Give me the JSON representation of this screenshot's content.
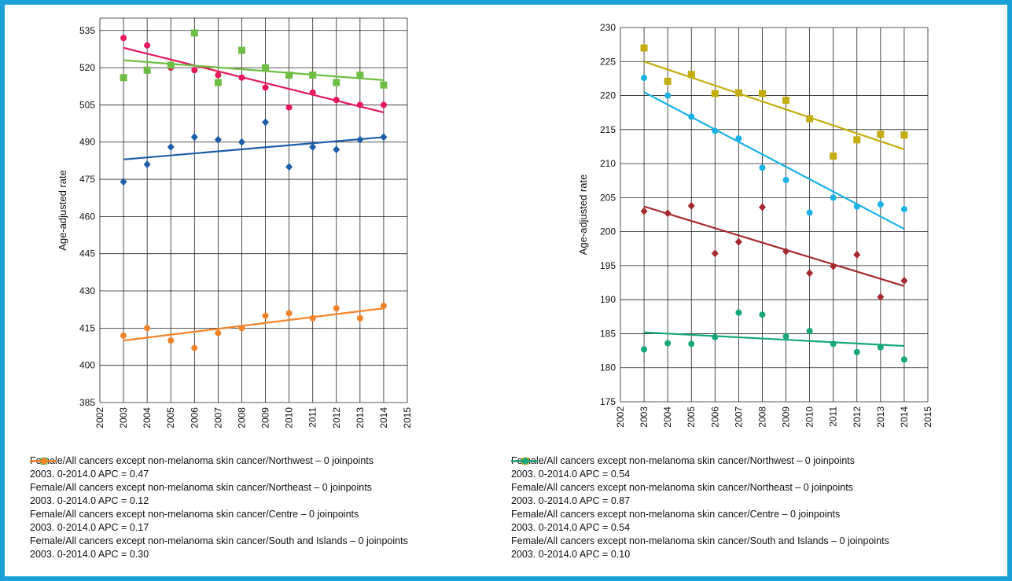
{
  "frame_color": "#1ba1d8",
  "chart_data": [
    {
      "type": "scatter",
      "ylabel": "Age-adjusted rate",
      "xlabel": "",
      "xlim": [
        2002,
        2015
      ],
      "ylim": [
        385,
        540
      ],
      "xticks": [
        "2002",
        "2003",
        "2004",
        "2005",
        "2006",
        "2007",
        "2008",
        "2009",
        "2010",
        "2011",
        "2012",
        "2013",
        "2014",
        "2015"
      ],
      "yticks": [
        "385",
        "400",
        "415",
        "430",
        "445",
        "460",
        "475",
        "490",
        "505",
        "520",
        "535"
      ],
      "grid": true,
      "legend_position": "bottom",
      "series": [
        {
          "name": "Female/All cancers except non-melanoma skin cancer/Northwest – 0 joinpoints",
          "trend_label": "2003. 0-2014.0 APC = 0.47",
          "color": "#e5195a",
          "marker": "circle",
          "x": [
            2003,
            2004,
            2005,
            2006,
            2007,
            2008,
            2009,
            2010,
            2011,
            2012,
            2013,
            2014
          ],
          "values": [
            532,
            529,
            520,
            519,
            517,
            516,
            512,
            504,
            510,
            507,
            505,
            505
          ],
          "trend": [
            [
              2003,
              528
            ],
            [
              2014,
              502
            ]
          ]
        },
        {
          "name": "Female/All cancers except non-melanoma skin cancer/Northeast – 0 joinpoints",
          "trend_label": "2003. 0-2014.0 APC = 0.12",
          "color": "#6fbe44",
          "marker": "square",
          "x": [
            2003,
            2004,
            2005,
            2006,
            2007,
            2008,
            2009,
            2010,
            2011,
            2012,
            2013,
            2014
          ],
          "values": [
            516,
            519,
            521,
            534,
            514,
            527,
            520,
            517,
            517,
            514,
            517,
            513
          ],
          "trend": [
            [
              2003,
              523
            ],
            [
              2014,
              515
            ]
          ]
        },
        {
          "name": "Female/All cancers except non-melanoma skin cancer/Centre – 0 joinpoints",
          "trend_label": "2003. 0-2014.0 APC = 0.17",
          "color": "#1e5ea8",
          "marker": "diamond",
          "x": [
            2003,
            2004,
            2005,
            2006,
            2007,
            2008,
            2009,
            2010,
            2011,
            2012,
            2013,
            2014
          ],
          "values": [
            474,
            481,
            488,
            492,
            491,
            490,
            498,
            480,
            488,
            487,
            491,
            492
          ],
          "trend": [
            [
              2003,
              483
            ],
            [
              2014,
              492
            ]
          ]
        },
        {
          "name": "Female/All cancers except non-melanoma skin cancer/South and Islands – 0 joinpoints",
          "trend_label": "2003. 0-2014.0 APC = 0.30",
          "color": "#f5832a",
          "marker": "circle",
          "x": [
            2003,
            2004,
            2005,
            2006,
            2007,
            2008,
            2009,
            2010,
            2011,
            2012,
            2013,
            2014
          ],
          "values": [
            412,
            415,
            410,
            407,
            413,
            415,
            420,
            421,
            419,
            423,
            419,
            424
          ],
          "trend": [
            [
              2003,
              410
            ],
            [
              2014,
              423
            ]
          ]
        }
      ]
    },
    {
      "type": "scatter",
      "ylabel": "Age-adjusted rate",
      "xlabel": "",
      "xlim": [
        2002,
        2015
      ],
      "ylim": [
        175,
        230
      ],
      "xticks": [
        "2002",
        "2003",
        "2004",
        "2005",
        "2006",
        "2007",
        "2008",
        "2009",
        "2010",
        "2011",
        "2012",
        "2013",
        "2014",
        "2015"
      ],
      "yticks": [
        "175",
        "180",
        "185",
        "190",
        "195",
        "200",
        "205",
        "210",
        "215",
        "220",
        "225",
        "230"
      ],
      "grid": true,
      "legend_position": "bottom",
      "series": [
        {
          "name": "Female/All cancers except non-melanoma skin cancer/Northwest – 0 joinpoints",
          "trend_label": "2003. 0-2014.0 APC = 0.54",
          "color": "#c4ad0e",
          "marker": "square",
          "x": [
            2003,
            2004,
            2005,
            2006,
            2007,
            2008,
            2009,
            2010,
            2011,
            2012,
            2013,
            2014
          ],
          "values": [
            227,
            222.1,
            223.1,
            220.3,
            220.4,
            220.3,
            219.3,
            216.6,
            211.1,
            213.5,
            214.3,
            214.2
          ],
          "trend": [
            [
              2003,
              225
            ],
            [
              2014,
              212.1
            ]
          ]
        },
        {
          "name": "Female/All cancers except non-melanoma skin cancer/Northeast – 0 joinpoints",
          "trend_label": "2003. 0-2014.0 APC = 0.87",
          "color": "#19b2e8",
          "marker": "circle",
          "x": [
            2003,
            2004,
            2005,
            2006,
            2007,
            2008,
            2009,
            2010,
            2011,
            2012,
            2013,
            2014
          ],
          "values": [
            222.6,
            220,
            216.9,
            214.8,
            213.7,
            209.4,
            207.6,
            202.8,
            205,
            203.7,
            204,
            203.3
          ],
          "trend": [
            [
              2003,
              220.5
            ],
            [
              2014,
              200.4
            ]
          ]
        },
        {
          "name": "Female/All cancers except non-melanoma skin cancer/Centre – 0 joinpoints",
          "trend_label": "2003. 0-2014.0 APC = 0.54",
          "color": "#a52a2f",
          "marker": "diamond",
          "x": [
            2003,
            2004,
            2005,
            2006,
            2007,
            2008,
            2009,
            2010,
            2011,
            2012,
            2013,
            2014
          ],
          "values": [
            203,
            202.7,
            203.8,
            196.8,
            198.5,
            203.6,
            197.1,
            193.9,
            194.9,
            196.6,
            190.4,
            192.8
          ],
          "trend": [
            [
              2003,
              203.7
            ],
            [
              2014,
              192
            ]
          ]
        },
        {
          "name": "Female/All cancers except non-melanoma skin cancer/South and Islands – 0 joinpoints",
          "trend_label": "2003. 0-2014.0 APC = 0.10",
          "color": "#16a77a",
          "marker": "circle",
          "x": [
            2003,
            2004,
            2005,
            2006,
            2007,
            2008,
            2009,
            2010,
            2011,
            2012,
            2013,
            2014
          ],
          "values": [
            182.7,
            183.6,
            183.5,
            184.5,
            188.1,
            187.8,
            184.6,
            185.4,
            183.5,
            182.3,
            183,
            181.2
          ],
          "trend": [
            [
              2003,
              185.2
            ],
            [
              2014,
              183.2
            ]
          ]
        }
      ]
    }
  ]
}
